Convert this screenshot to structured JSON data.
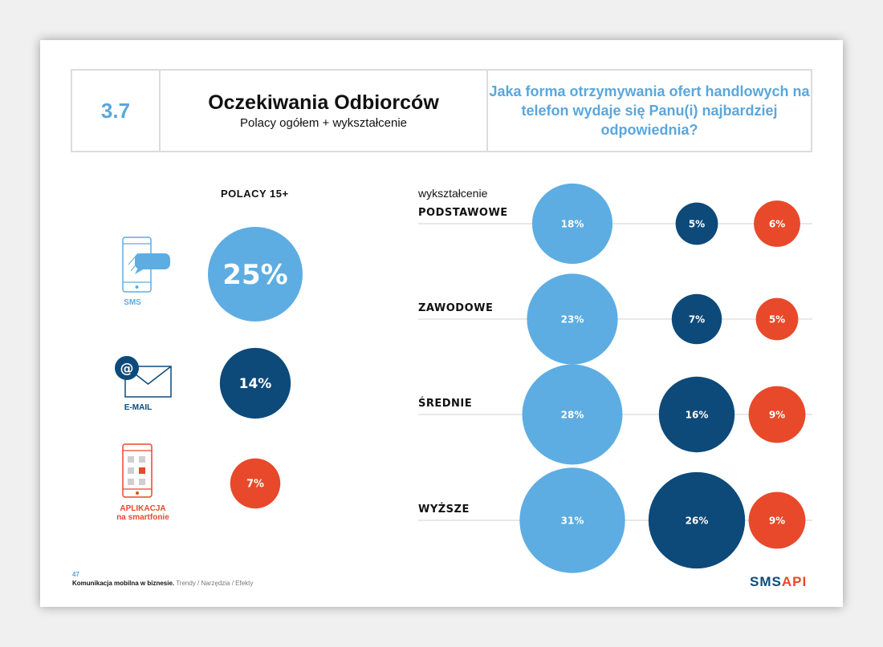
{
  "header": {
    "section_number": "3.7",
    "title": "Oczekiwania Odbiorców",
    "subtitle": "Polacy ogółem + wykształcenie",
    "question": "Jaka forma otrzymywania ofert handlowych na telefon wydaje się Panu(i) najbardziej odpowiednia?"
  },
  "left": {
    "heading": "POLACY 15+",
    "channels": [
      {
        "label": "SMS",
        "label2": "",
        "value": "25%",
        "icon": "smartphone-sms-icon"
      },
      {
        "label": "E-MAIL",
        "label2": "",
        "value": "14%",
        "icon": "email-envelope-icon"
      },
      {
        "label": "APLIKACJA",
        "label2": "na smartfonie",
        "value": "7%",
        "icon": "smartphone-app-icon"
      }
    ]
  },
  "right": {
    "axis_label": "wykształcenie"
  },
  "colors": {
    "sms": "#5dade2",
    "email": "#0d4a7a",
    "app": "#e8492a"
  },
  "chart_data": {
    "type": "bubble",
    "categories": [
      "PODSTAWOWE",
      "ZAWODOWE",
      "ŚREDNIE",
      "WYŻSZE"
    ],
    "series": [
      {
        "name": "SMS",
        "values": [
          18,
          23,
          28,
          31
        ]
      },
      {
        "name": "E-MAIL",
        "values": [
          5,
          7,
          16,
          26
        ]
      },
      {
        "name": "APLIKACJA na smartfonie",
        "values": [
          6,
          5,
          9,
          9
        ]
      }
    ],
    "totals": {
      "SMS": 25,
      "E-MAIL": 14,
      "APLIKACJA na smartfonie": 7
    },
    "unit": "%"
  },
  "footer": {
    "page": "47",
    "title": "Komunikacja mobilna w biznesie.",
    "subtitle": "Trendy / Narzędzia / Efekty"
  },
  "logo": {
    "part1": "SMS",
    "part2": "API"
  }
}
